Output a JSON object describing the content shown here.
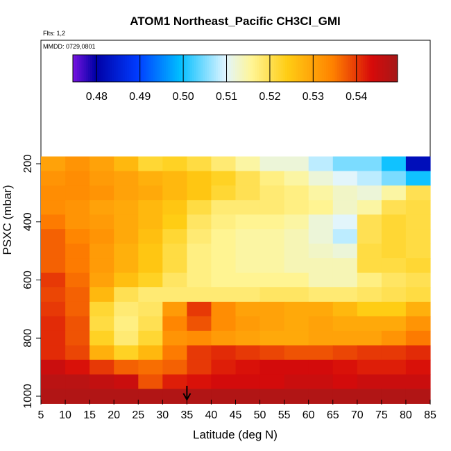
{
  "chart_data": {
    "type": "heatmap",
    "title": "ATOM1 Northeast_Pacific CH3Cl_GMI",
    "flights_note": "Flts: 1,2",
    "date_note": "MMDD: 0729,0801",
    "xlabel": "Latitude (deg N)",
    "ylabel": "PSXC (mbar)",
    "xlim": [
      5,
      85
    ],
    "ylim": [
      1000,
      0
    ],
    "x_ticks": [
      5,
      10,
      15,
      20,
      25,
      30,
      35,
      40,
      45,
      50,
      55,
      60,
      65,
      70,
      75,
      80,
      85
    ],
    "y_ticks": [
      200,
      400,
      600,
      800,
      1000
    ],
    "grid": false,
    "colorbar": {
      "position": "top",
      "range": [
        0.4745,
        0.5495
      ],
      "ticks": [
        "0.48",
        "0.49",
        "0.50",
        "0.51",
        "0.52",
        "0.53",
        "0.54"
      ],
      "tick_values": [
        0.48,
        0.49,
        0.5,
        0.51,
        0.52,
        0.53,
        0.54
      ]
    },
    "marker": {
      "x": 35,
      "label": "arrow at 35 deg N"
    },
    "pressure_levels": [
      200,
      250,
      300,
      350,
      400,
      450,
      500,
      550,
      600,
      650,
      700,
      750,
      800,
      850,
      900,
      950,
      1000
    ],
    "latitude_bins": [
      5,
      10,
      15,
      20,
      25,
      30,
      35,
      40,
      45,
      50,
      55,
      60,
      65,
      70,
      75,
      80
    ],
    "values_by_level": [
      [
        0.53,
        0.532,
        0.53,
        0.527,
        0.522,
        0.523,
        0.521,
        0.518,
        0.515,
        0.512,
        0.512,
        0.508,
        0.505,
        0.505,
        0.5,
        0.482
      ],
      [
        0.532,
        0.533,
        0.531,
        0.53,
        0.528,
        0.527,
        0.525,
        0.523,
        0.52,
        0.517,
        0.515,
        0.512,
        0.51,
        0.508,
        0.505,
        0.5
      ],
      [
        0.533,
        0.533,
        0.532,
        0.53,
        0.529,
        0.527,
        0.525,
        0.522,
        0.52,
        0.518,
        0.517,
        0.515,
        0.513,
        0.512,
        0.515,
        0.52
      ],
      [
        0.533,
        0.532,
        0.53,
        0.529,
        0.527,
        0.525,
        0.521,
        0.518,
        0.518,
        0.518,
        0.517,
        0.516,
        0.513,
        0.515,
        0.52,
        0.521
      ],
      [
        0.535,
        0.532,
        0.531,
        0.529,
        0.527,
        0.524,
        0.519,
        0.517,
        0.516,
        0.516,
        0.515,
        0.512,
        0.51,
        0.52,
        0.522,
        0.521
      ],
      [
        0.537,
        0.534,
        0.532,
        0.529,
        0.526,
        0.522,
        0.518,
        0.516,
        0.515,
        0.515,
        0.514,
        0.512,
        0.508,
        0.52,
        0.522,
        0.521
      ],
      [
        0.537,
        0.535,
        0.531,
        0.528,
        0.525,
        0.521,
        0.517,
        0.516,
        0.515,
        0.515,
        0.514,
        0.513,
        0.512,
        0.521,
        0.522,
        0.521
      ],
      [
        0.537,
        0.535,
        0.531,
        0.528,
        0.525,
        0.521,
        0.517,
        0.516,
        0.515,
        0.515,
        0.514,
        0.514,
        0.514,
        0.521,
        0.521,
        0.522
      ],
      [
        0.54,
        0.536,
        0.53,
        0.526,
        0.523,
        0.519,
        0.517,
        0.516,
        0.516,
        0.516,
        0.516,
        0.514,
        0.514,
        0.517,
        0.519,
        0.52
      ],
      [
        0.539,
        0.537,
        0.527,
        0.52,
        0.518,
        0.518,
        0.518,
        0.518,
        0.518,
        0.519,
        0.519,
        0.518,
        0.518,
        0.519,
        0.52,
        0.521
      ],
      [
        0.54,
        0.537,
        0.522,
        0.518,
        0.519,
        0.531,
        0.54,
        0.533,
        0.53,
        0.53,
        0.529,
        0.529,
        0.527,
        0.524,
        0.524,
        0.528
      ],
      [
        0.541,
        0.538,
        0.521,
        0.517,
        0.52,
        0.534,
        0.538,
        0.533,
        0.531,
        0.53,
        0.529,
        0.53,
        0.529,
        0.529,
        0.529,
        0.532
      ],
      [
        0.541,
        0.538,
        0.523,
        0.518,
        0.522,
        0.532,
        0.533,
        0.531,
        0.53,
        0.529,
        0.529,
        0.53,
        0.53,
        0.53,
        0.532,
        0.535
      ],
      [
        0.541,
        0.539,
        0.528,
        0.523,
        0.527,
        0.535,
        0.54,
        0.541,
        0.54,
        0.539,
        0.538,
        0.538,
        0.539,
        0.54,
        0.54,
        0.541
      ],
      [
        0.545,
        0.543,
        0.54,
        0.537,
        0.536,
        0.537,
        0.54,
        0.542,
        0.543,
        0.544,
        0.544,
        0.544,
        0.543,
        0.542,
        0.542,
        0.543
      ],
      [
        0.547,
        0.547,
        0.546,
        0.545,
        0.538,
        0.542,
        0.543,
        0.544,
        0.544,
        0.544,
        0.545,
        0.545,
        0.544,
        0.545,
        0.545,
        0.545
      ],
      [
        0.548,
        0.548,
        0.548,
        0.548,
        0.548,
        0.548,
        0.548,
        0.548,
        0.548,
        0.548,
        0.548,
        0.548,
        0.548,
        0.548,
        0.548,
        0.548
      ]
    ]
  }
}
